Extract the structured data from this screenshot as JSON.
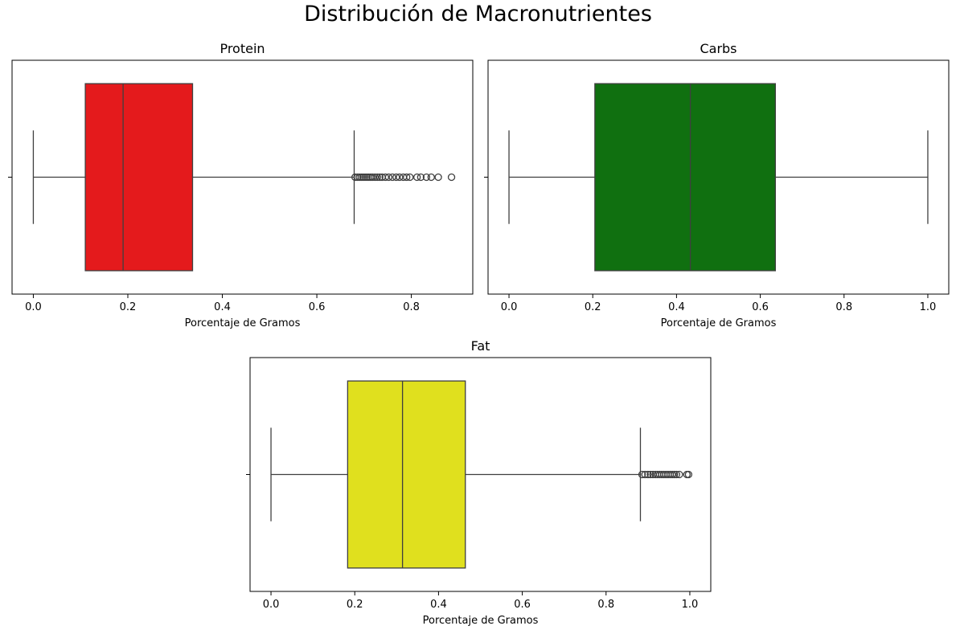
{
  "figure": {
    "title": "Distribución de Macronutrientes"
  },
  "chart_data": [
    {
      "type": "box",
      "title": "Protein",
      "xlabel": "Porcentaje de Gramos",
      "ylabel": "",
      "xlim": [
        -0.045,
        0.93
      ],
      "xticks": [
        0.0,
        0.2,
        0.4,
        0.6,
        0.8
      ],
      "tick_labels": [
        "0.0",
        "0.2",
        "0.4",
        "0.6",
        "0.8"
      ],
      "color": "#e41a1c",
      "stats": {
        "whislo": 0.0,
        "q1": 0.11,
        "median": 0.19,
        "q3": 0.337,
        "whishi": 0.679
      },
      "outliers": [
        0.681,
        0.686,
        0.69,
        0.694,
        0.698,
        0.702,
        0.706,
        0.71,
        0.714,
        0.718,
        0.723,
        0.728,
        0.733,
        0.738,
        0.745,
        0.752,
        0.76,
        0.768,
        0.775,
        0.783,
        0.79,
        0.797,
        0.812,
        0.82,
        0.832,
        0.842,
        0.857,
        0.885
      ]
    },
    {
      "type": "box",
      "title": "Carbs",
      "xlabel": "Porcentaje de Gramos",
      "ylabel": "",
      "xlim": [
        -0.05,
        1.05
      ],
      "xticks": [
        0.0,
        0.2,
        0.4,
        0.6,
        0.8,
        1.0
      ],
      "tick_labels": [
        "0.0",
        "0.2",
        "0.4",
        "0.6",
        "0.8",
        "1.0"
      ],
      "color": "#107010",
      "stats": {
        "whislo": 0.0,
        "q1": 0.205,
        "median": 0.433,
        "q3": 0.636,
        "whishi": 1.0
      },
      "outliers": []
    },
    {
      "type": "box",
      "title": "Fat",
      "xlabel": "Porcentaje de Gramos",
      "ylabel": "",
      "xlim": [
        -0.05,
        1.05
      ],
      "xticks": [
        0.0,
        0.2,
        0.4,
        0.6,
        0.8,
        1.0
      ],
      "tick_labels": [
        "0.0",
        "0.2",
        "0.4",
        "0.6",
        "0.8",
        "1.0"
      ],
      "color": "#e0e01e",
      "stats": {
        "whislo": 0.0,
        "q1": 0.183,
        "median": 0.314,
        "q3": 0.464,
        "whishi": 0.882
      },
      "outliers": [
        0.886,
        0.893,
        0.9,
        0.906,
        0.912,
        0.918,
        0.923,
        0.928,
        0.933,
        0.938,
        0.943,
        0.948,
        0.953,
        0.958,
        0.963,
        0.968,
        0.975,
        0.993,
        0.997
      ]
    }
  ]
}
